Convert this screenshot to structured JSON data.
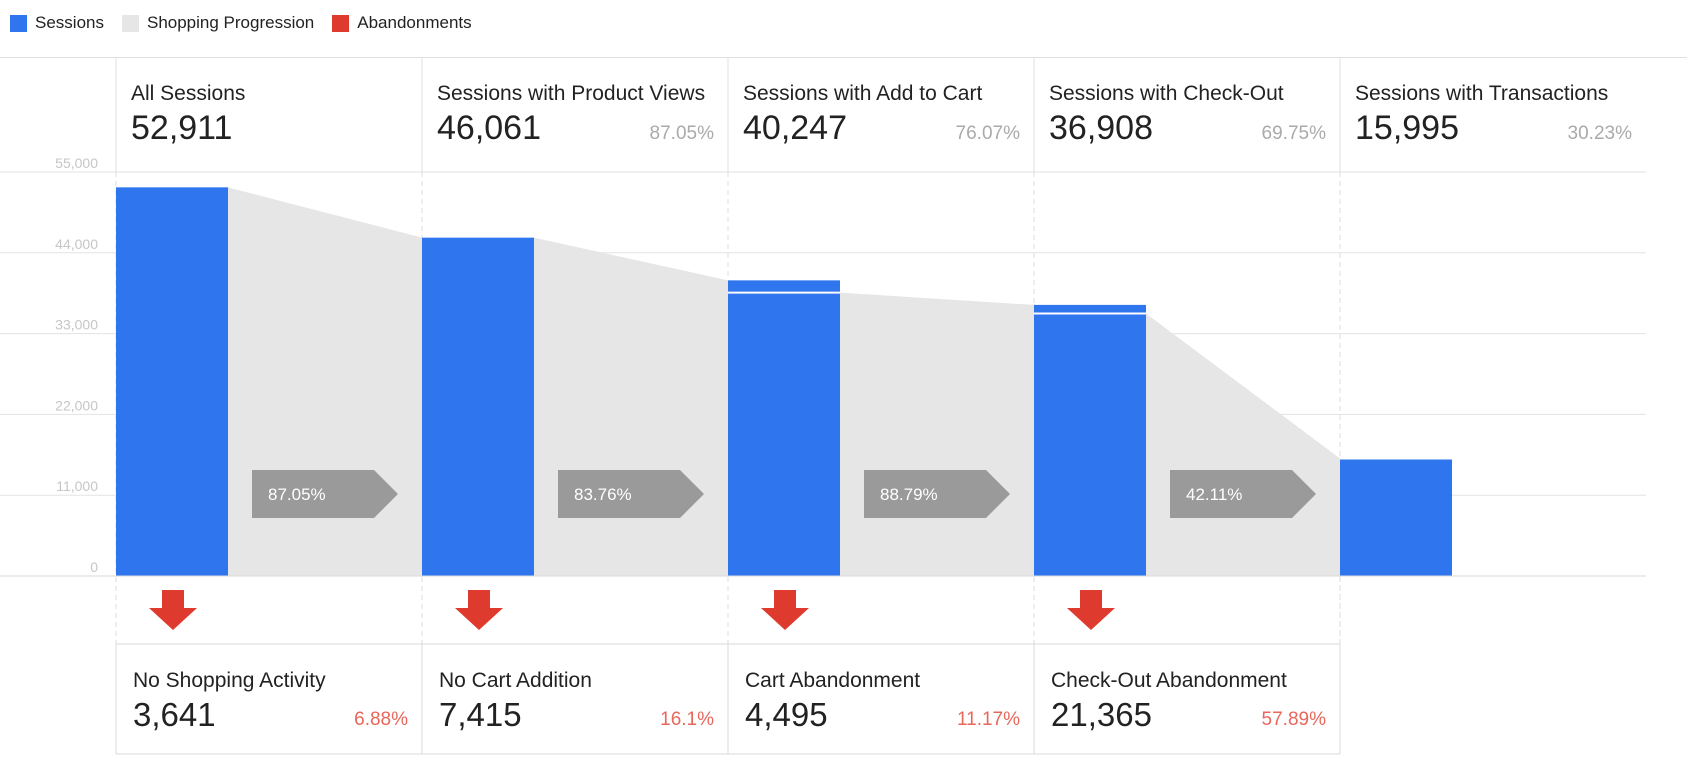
{
  "legend": [
    {
      "label": "Sessions",
      "color": "#2f75ee"
    },
    {
      "label": "Shopping Progression",
      "color": "#e6e6e6"
    },
    {
      "label": "Abandonments",
      "color": "#de3a2e"
    }
  ],
  "steps": [
    {
      "name": "All Sessions",
      "value": "52,911",
      "rate": ""
    },
    {
      "name": "Sessions with Product Views",
      "value": "46,061",
      "rate": "87.05%"
    },
    {
      "name": "Sessions with Add to Cart",
      "value": "40,247",
      "rate": "76.07%"
    },
    {
      "name": "Sessions with Check-Out",
      "value": "36,908",
      "rate": "69.75%"
    },
    {
      "name": "Sessions with Transactions",
      "value": "15,995",
      "rate": "30.23%"
    }
  ],
  "progression": [
    "87.05%",
    "83.76%",
    "88.79%",
    "42.11%"
  ],
  "abandonments": [
    {
      "name": "No Shopping Activity",
      "value": "3,641",
      "rate": "6.88%"
    },
    {
      "name": "No Cart Addition",
      "value": "7,415",
      "rate": "16.1%"
    },
    {
      "name": "Cart Abandonment",
      "value": "4,495",
      "rate": "11.17%"
    },
    {
      "name": "Check-Out Abandonment",
      "value": "21,365",
      "rate": "57.89%"
    }
  ],
  "chart_data": {
    "type": "bar",
    "categories": [
      "All Sessions",
      "Sessions with Product Views",
      "Sessions with Add to Cart",
      "Sessions with Check-Out",
      "Sessions with Transactions"
    ],
    "series": [
      {
        "name": "Sessions",
        "values": [
          52911,
          46061,
          40247,
          36908,
          15995
        ]
      }
    ],
    "progression_values": [
      52911,
      46061,
      38578,
      35736,
      15995
    ],
    "ylim": [
      0,
      55000
    ],
    "yticks": [
      "55,000",
      "44,000",
      "33,000",
      "22,000",
      "11,000",
      "0"
    ],
    "grid": true,
    "legend_position": "top-left",
    "colors": {
      "sessions": "#2f75ee",
      "progression": "#e6e6e6",
      "abandonment": "#de3a2e",
      "progression_tag": "#9a9a9a"
    }
  }
}
